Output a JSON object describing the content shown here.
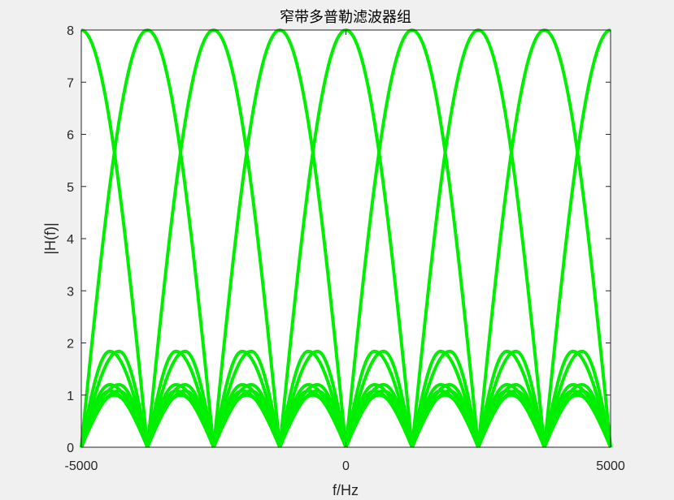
{
  "chart_data": {
    "type": "line",
    "title": "窄带多普勒滤波器组",
    "xlabel": "f/Hz",
    "ylabel": "|H(f)|",
    "xlim": [
      -5000,
      5000
    ],
    "ylim": [
      0,
      8
    ],
    "xticks": [
      -5000,
      0,
      5000
    ],
    "yticks": [
      0,
      1,
      2,
      3,
      4,
      5,
      6,
      7,
      8
    ],
    "grid": false,
    "line_color": "#00ee00",
    "filter_count": 8,
    "filter_peak_frequencies_hz": [
      -5000,
      -3750,
      -2500,
      -1250,
      0,
      1250,
      2500,
      3750,
      5000
    ],
    "filter_peak_gain": 8,
    "filter_null_width_hz": 2500,
    "sidelobe_peak_levels": [
      1.0,
      1.08,
      1.2,
      1.84
    ]
  }
}
